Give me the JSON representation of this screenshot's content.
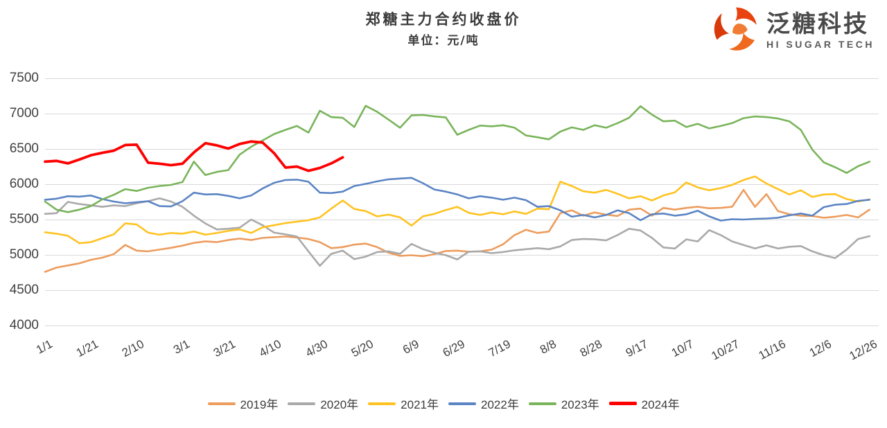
{
  "header": {
    "title": "郑糖主力合约收盘价",
    "subtitle": "单位：元/吨"
  },
  "logo": {
    "name": "泛糖科技",
    "tagline": "HI SUGAR TECH",
    "icon": "swirl-sphere-icon",
    "accent_colors": [
      "#e84c10",
      "#dievalid",
      "#f07b33"
    ]
  },
  "chart_data": {
    "type": "line",
    "title": "郑糖主力合约收盘价",
    "unit": "元/吨",
    "ylim": [
      4000,
      7500
    ],
    "y_ticks": [
      7500,
      7000,
      6500,
      6000,
      5500,
      5000,
      4500,
      4000
    ],
    "grid": "horizontal-only",
    "legend_position": "bottom",
    "x_day_interval": 5,
    "x_total_days": 365,
    "x_tick_labels": [
      "1/1",
      "1/21",
      "2/10",
      "3/1",
      "3/21",
      "4/10",
      "4/30",
      "5/20",
      "6/9",
      "6/29",
      "7/19",
      "8/8",
      "8/28",
      "9/17",
      "10/7",
      "10/27",
      "11/16",
      "12/6",
      "12/26"
    ],
    "x_tick_days": [
      1,
      21,
      41,
      61,
      81,
      101,
      121,
      141,
      161,
      181,
      201,
      221,
      241,
      261,
      281,
      301,
      321,
      341,
      361
    ],
    "series": [
      {
        "name": "2019年",
        "color": "#ED9C5D",
        "width": 2.6,
        "values": [
          4760,
          4820,
          4850,
          4880,
          4930,
          4960,
          5010,
          5140,
          5060,
          5050,
          5075,
          5100,
          5130,
          5170,
          5190,
          5180,
          5210,
          5230,
          5210,
          5240,
          5250,
          5260,
          5245,
          5225,
          5180,
          5095,
          5110,
          5145,
          5160,
          5110,
          5030,
          4985,
          4995,
          4980,
          5010,
          5055,
          5060,
          5045,
          5050,
          5075,
          5150,
          5280,
          5355,
          5310,
          5330,
          5590,
          5630,
          5555,
          5600,
          5570,
          5550,
          5640,
          5655,
          5555,
          5665,
          5640,
          5665,
          5680,
          5660,
          5665,
          5680,
          5920,
          5680,
          5860,
          5620,
          5575,
          5555,
          5550,
          5525,
          5540,
          5565,
          5530,
          5640
        ]
      },
      {
        "name": "2020年",
        "color": "#A9A9A9",
        "width": 2.6,
        "values": [
          5580,
          5590,
          5750,
          5720,
          5700,
          5680,
          5700,
          5690,
          5730,
          5760,
          5800,
          5755,
          5680,
          5555,
          5445,
          5360,
          5370,
          5385,
          5500,
          5420,
          5315,
          5290,
          5260,
          5050,
          4845,
          5015,
          5060,
          4940,
          4975,
          5040,
          5050,
          5015,
          5155,
          5080,
          5030,
          4995,
          4935,
          5045,
          5050,
          5025,
          5040,
          5065,
          5080,
          5095,
          5080,
          5120,
          5210,
          5225,
          5220,
          5205,
          5280,
          5370,
          5345,
          5240,
          5105,
          5090,
          5220,
          5190,
          5350,
          5280,
          5190,
          5140,
          5090,
          5135,
          5090,
          5115,
          5125,
          5050,
          4995,
          4955,
          5075,
          5225,
          5265
        ]
      },
      {
        "name": "2021年",
        "color": "#FFC220",
        "width": 2.6,
        "values": [
          5320,
          5300,
          5270,
          5165,
          5180,
          5235,
          5290,
          5445,
          5430,
          5315,
          5285,
          5310,
          5300,
          5330,
          5285,
          5310,
          5340,
          5360,
          5310,
          5390,
          5420,
          5450,
          5470,
          5490,
          5530,
          5655,
          5770,
          5650,
          5620,
          5545,
          5570,
          5530,
          5415,
          5545,
          5580,
          5635,
          5680,
          5595,
          5565,
          5600,
          5575,
          5615,
          5580,
          5655,
          5645,
          6035,
          5975,
          5900,
          5880,
          5920,
          5865,
          5800,
          5830,
          5770,
          5840,
          5885,
          6025,
          5955,
          5915,
          5945,
          5990,
          6060,
          6110,
          6010,
          5930,
          5855,
          5915,
          5820,
          5855,
          5860,
          5790,
          5755,
          5785
        ]
      },
      {
        "name": "2022年",
        "color": "#5B84C4",
        "width": 2.6,
        "values": [
          5780,
          5795,
          5830,
          5825,
          5840,
          5790,
          5755,
          5730,
          5745,
          5760,
          5690,
          5685,
          5760,
          5880,
          5855,
          5860,
          5835,
          5800,
          5840,
          5940,
          6020,
          6060,
          6065,
          6035,
          5880,
          5875,
          5895,
          5975,
          6005,
          6040,
          6070,
          6080,
          6090,
          6015,
          5925,
          5895,
          5855,
          5800,
          5830,
          5810,
          5780,
          5810,
          5775,
          5680,
          5690,
          5630,
          5540,
          5565,
          5530,
          5565,
          5630,
          5590,
          5490,
          5575,
          5585,
          5555,
          5575,
          5625,
          5545,
          5485,
          5505,
          5500,
          5510,
          5515,
          5525,
          5560,
          5585,
          5555,
          5675,
          5710,
          5720,
          5765,
          5780
        ]
      },
      {
        "name": "2023年",
        "color": "#79B45A",
        "width": 2.6,
        "values": [
          5755,
          5640,
          5605,
          5640,
          5690,
          5785,
          5850,
          5930,
          5905,
          5950,
          5975,
          5990,
          6030,
          6320,
          6130,
          6175,
          6200,
          6420,
          6530,
          6620,
          6710,
          6770,
          6825,
          6730,
          7040,
          6950,
          6940,
          6810,
          7110,
          7025,
          6915,
          6800,
          6975,
          6980,
          6960,
          6945,
          6700,
          6770,
          6830,
          6820,
          6835,
          6800,
          6690,
          6665,
          6635,
          6745,
          6805,
          6770,
          6835,
          6800,
          6865,
          6940,
          7105,
          6985,
          6890,
          6900,
          6810,
          6855,
          6790,
          6825,
          6865,
          6935,
          6960,
          6950,
          6930,
          6890,
          6770,
          6490,
          6310,
          6240,
          6160,
          6255,
          6320
        ]
      },
      {
        "name": "2024年",
        "color": "#FE0000",
        "width": 3.8,
        "values": [
          6320,
          6330,
          6295,
          6350,
          6410,
          6445,
          6475,
          6555,
          6560,
          6305,
          6290,
          6270,
          6290,
          6450,
          6580,
          6550,
          6505,
          6570,
          6605,
          6590,
          6440,
          6235,
          6250,
          6190,
          6230,
          6295,
          6380
        ]
      }
    ]
  }
}
